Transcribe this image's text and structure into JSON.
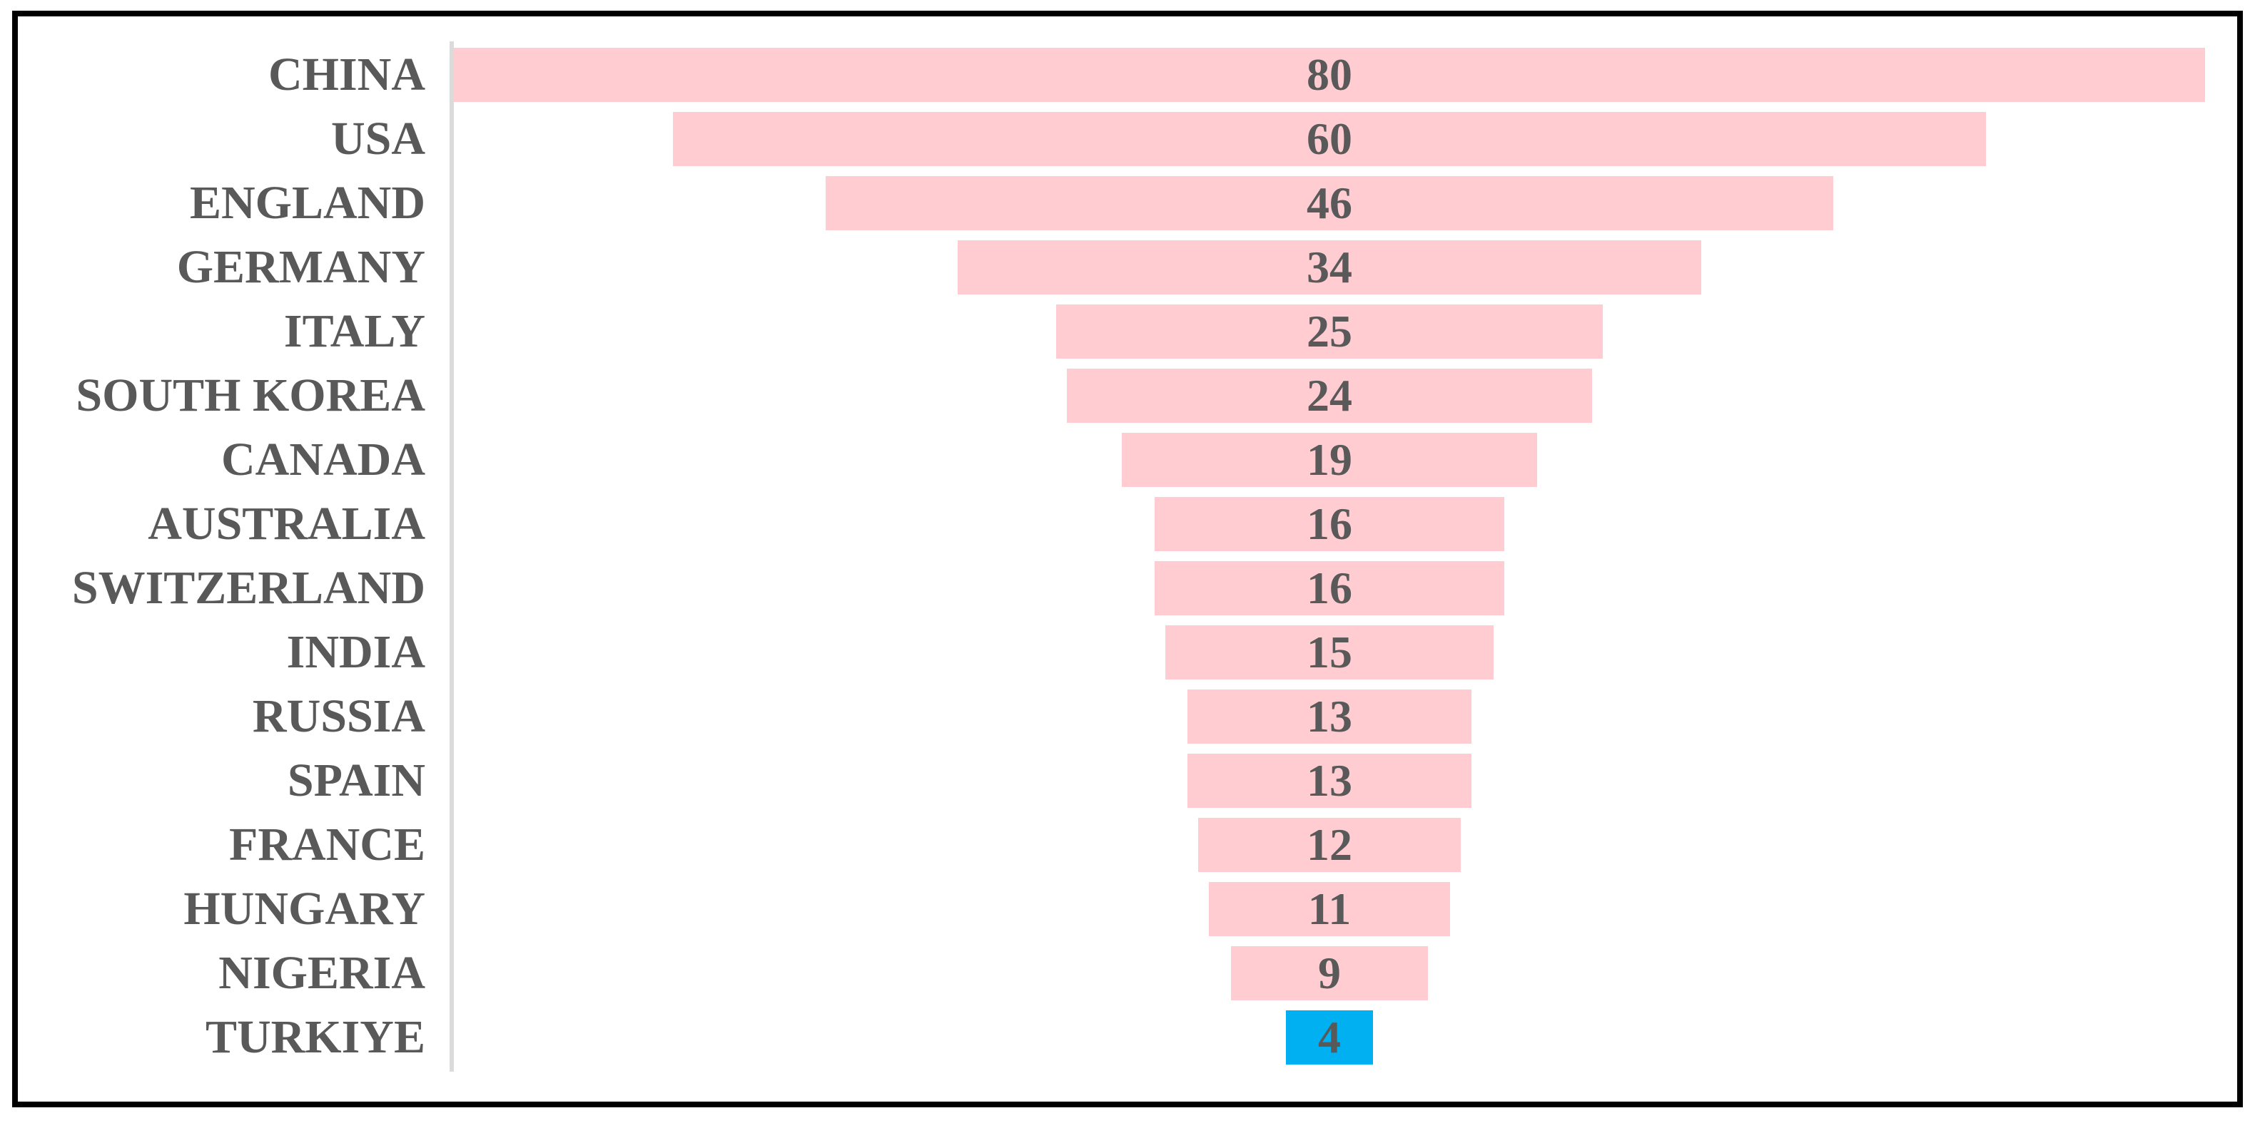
{
  "chart_data": {
    "type": "bar",
    "subtype": "centered-funnel-horizontal",
    "title": "",
    "xlabel": "",
    "ylabel": "",
    "xlim": [
      0,
      80
    ],
    "gridlines": false,
    "legend": false,
    "categories": [
      "CHINA",
      "USA",
      "ENGLAND",
      "GERMANY",
      "ITALY",
      "SOUTH KOREA",
      "CANADA",
      "AUSTRALIA",
      "SWITZERLAND",
      "INDIA",
      "RUSSIA",
      "SPAIN",
      "FRANCE",
      "HUNGARY",
      "NIGERIA",
      "TURKIYE"
    ],
    "values": [
      80,
      60,
      46,
      34,
      25,
      24,
      19,
      16,
      16,
      15,
      13,
      13,
      12,
      11,
      9,
      4
    ],
    "highlight": {
      "category": "TURKIYE",
      "color": "#00B0F0"
    },
    "colors": {
      "bar": "#FFCDD1",
      "highlight_bar": "#00B0F0",
      "text": "#595959",
      "axis_line": "#DBDBDB",
      "frame_border": "#000000",
      "background": "#FFFFFF"
    }
  }
}
